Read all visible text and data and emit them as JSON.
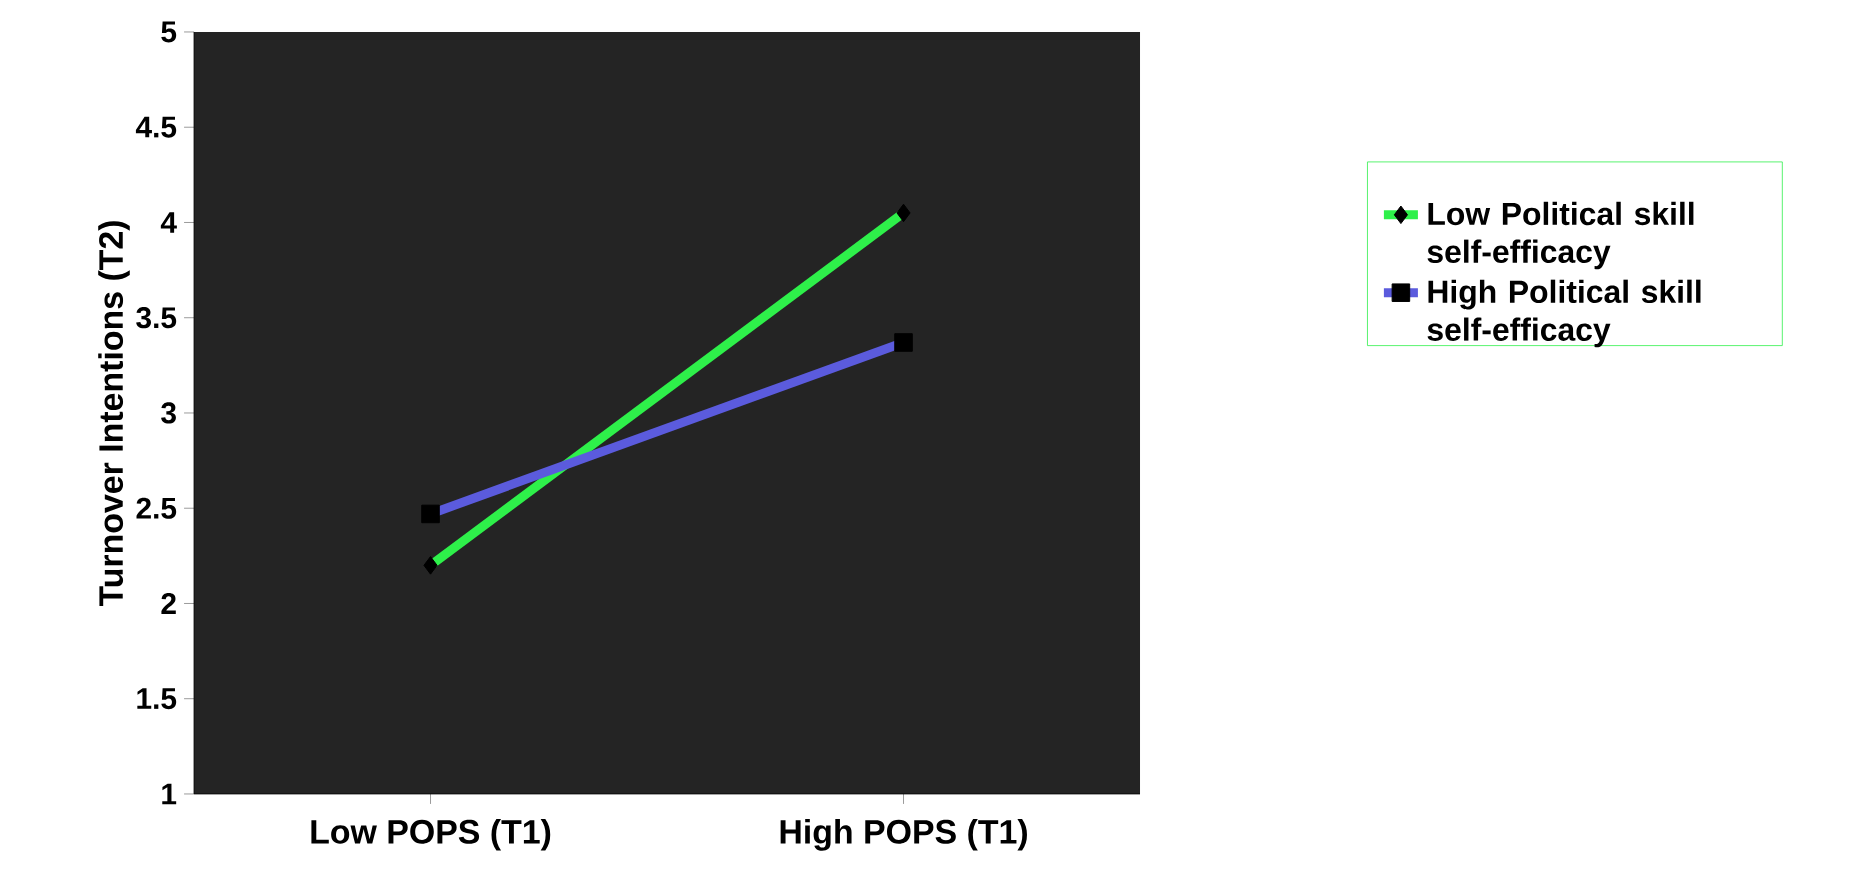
{
  "chart_data": {
    "type": "line",
    "ylabel": "Turnover Intentions (T2)",
    "categories": [
      "Low POPS (T1)",
      "High POPS (T1)"
    ],
    "series": [
      {
        "name": "Low Political skill self-efficacy",
        "color": "#2ef04a",
        "values": [
          2.2,
          4.05
        ],
        "marker": "diamond"
      },
      {
        "name": "High Political skill self-efficacy",
        "color": "#5b5bdd",
        "values": [
          2.47,
          3.37
        ],
        "marker": "square"
      }
    ],
    "ylim": [
      1,
      5
    ],
    "yticks": [
      1,
      1.5,
      2,
      2.5,
      3,
      3.5,
      4,
      4.5,
      5
    ],
    "legend": "right",
    "grid": false
  }
}
